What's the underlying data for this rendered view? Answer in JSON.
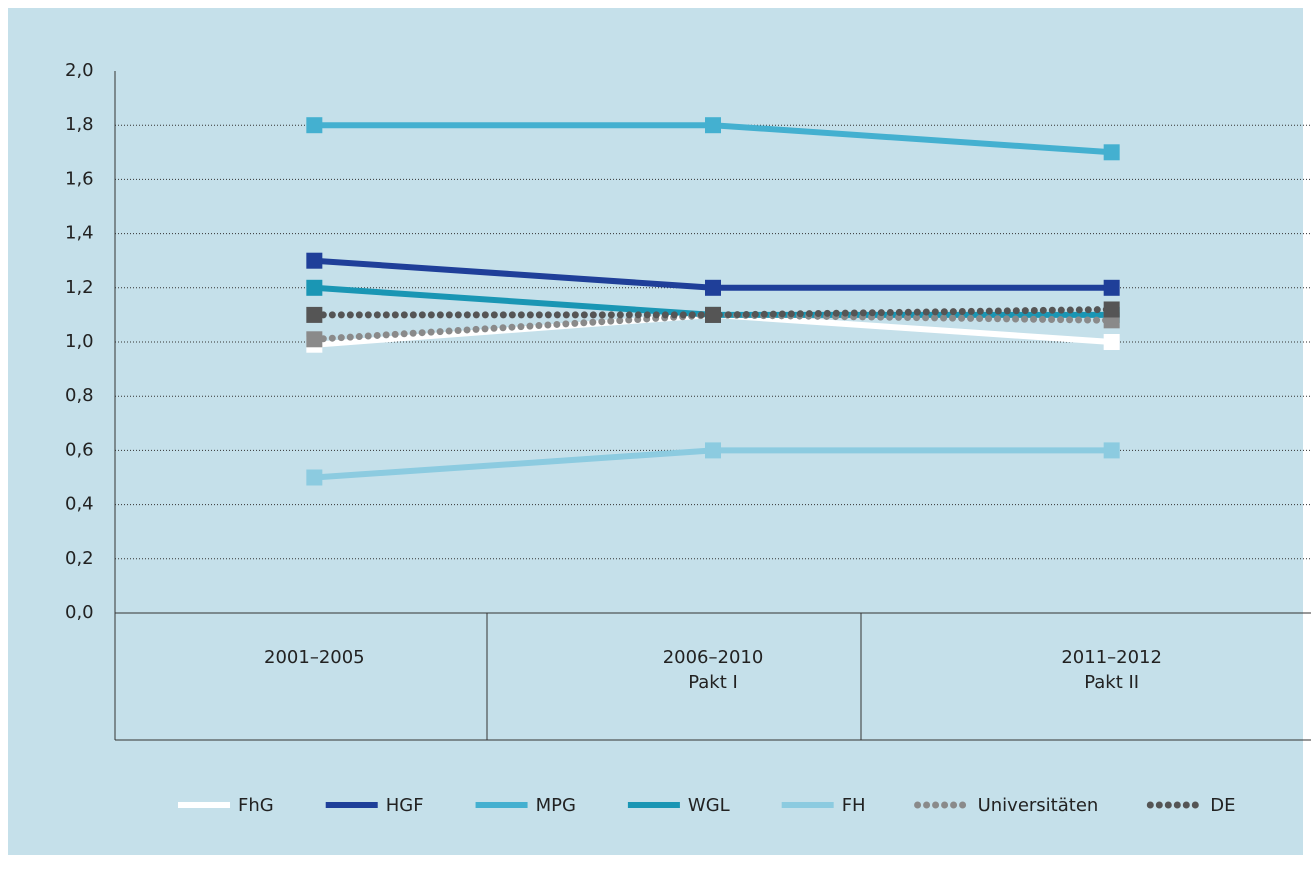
{
  "chart_data": {
    "type": "line",
    "categories": [
      [
        "2001–2005"
      ],
      [
        "2006–2010",
        "Pakt I"
      ],
      [
        "2011–2012",
        "Pakt II"
      ]
    ],
    "series": [
      {
        "name": "FhG",
        "color": "#ffffff",
        "style": "solid",
        "values": [
          0.99,
          1.1,
          1.0
        ]
      },
      {
        "name": "HGF",
        "color": "#1f3f99",
        "style": "solid",
        "values": [
          1.3,
          1.2,
          1.2
        ]
      },
      {
        "name": "MPG",
        "color": "#44b0d0",
        "style": "solid",
        "values": [
          1.8,
          1.8,
          1.7
        ]
      },
      {
        "name": "WGL",
        "color": "#1a96b4",
        "style": "solid",
        "values": [
          1.2,
          1.1,
          1.1
        ]
      },
      {
        "name": "FH",
        "color": "#8ccbe0",
        "style": "solid",
        "values": [
          0.5,
          0.6,
          0.6
        ]
      },
      {
        "name": "Universitäten",
        "color": "#8a8a8a",
        "style": "dotted",
        "values": [
          1.01,
          1.1,
          1.08
        ]
      },
      {
        "name": "DE",
        "color": "#555555",
        "style": "dotted",
        "values": [
          1.1,
          1.1,
          1.12
        ]
      }
    ],
    "ylim": [
      0,
      2
    ],
    "yticks": [
      {
        "value": 0,
        "label": "0,0"
      },
      {
        "value": 0.2,
        "label": "0,2"
      },
      {
        "value": 0.4,
        "label": "0,4"
      },
      {
        "value": 0.6,
        "label": "0,6"
      },
      {
        "value": 0.8,
        "label": "0,8"
      },
      {
        "value": 1,
        "label": "1,0"
      },
      {
        "value": 1.2,
        "label": "1,2"
      },
      {
        "value": 1.4,
        "label": "1,4"
      },
      {
        "value": 1.6,
        "label": "1,6"
      },
      {
        "value": 1.8,
        "label": "1,8"
      },
      {
        "value": 2,
        "label": "2,0"
      }
    ],
    "grid": true
  }
}
